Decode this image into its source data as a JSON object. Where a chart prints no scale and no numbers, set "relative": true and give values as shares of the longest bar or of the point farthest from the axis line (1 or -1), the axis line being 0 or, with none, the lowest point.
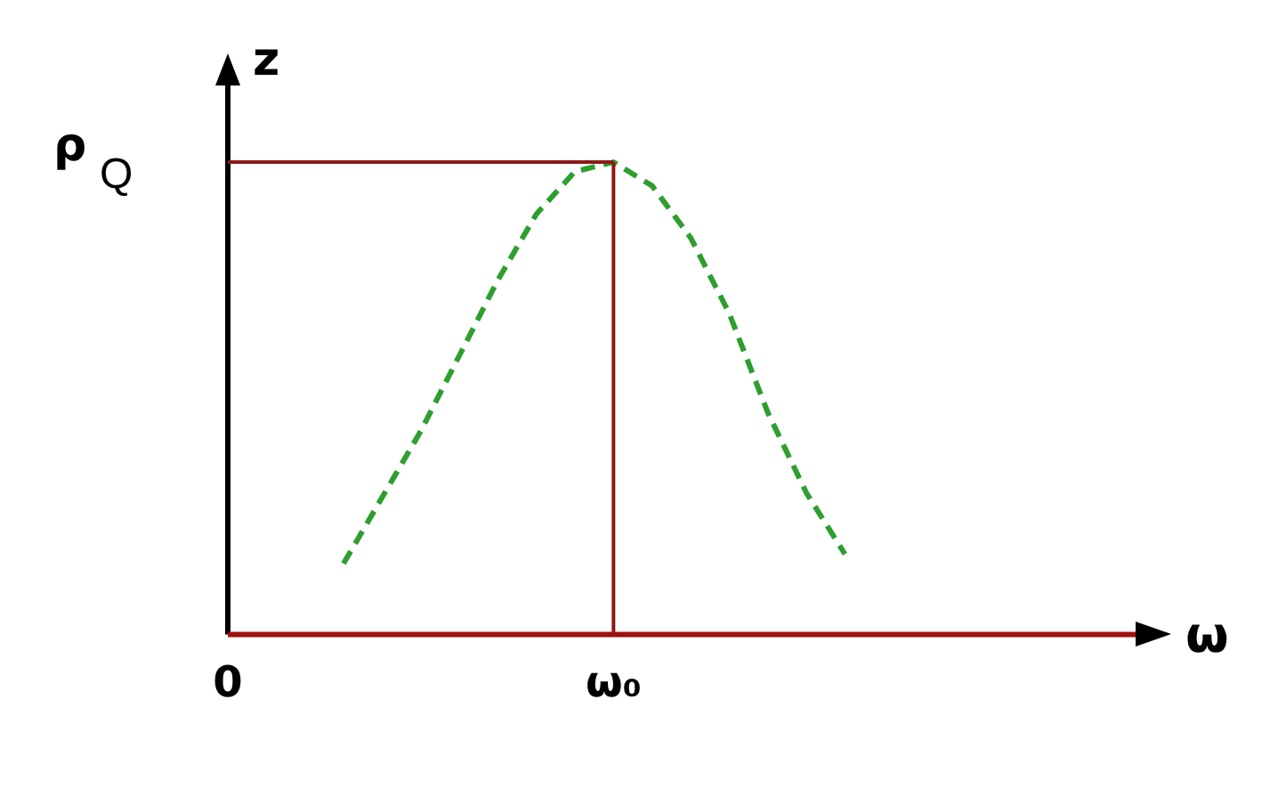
{
  "chart_data": {
    "type": "line",
    "relative": true,
    "xlabel": "ω",
    "ylabel": "z",
    "legend": false,
    "marker": "none",
    "line_style": "dashed",
    "categories": [
      "0",
      null,
      null,
      null,
      null,
      null,
      null,
      null,
      null,
      null,
      "ω₀",
      null,
      null,
      null,
      null,
      null,
      null,
      null,
      null,
      null,
      null,
      null,
      null,
      null,
      null
    ],
    "series": [
      {
        "color": "#2e9e2e",
        "values": [
          null,
          null,
          null,
          0.15,
          0.29,
          0.43,
          0.59,
          0.75,
          0.89,
          0.98,
          1.0,
          0.95,
          0.84,
          0.68,
          0.47,
          0.3,
          0.17,
          null,
          null,
          null,
          null,
          null,
          null,
          null,
          null
        ]
      }
    ],
    "ref_lines": [
      {
        "axis": "y",
        "value": 1,
        "label": "ρQ",
        "color": "#8b1a1a"
      },
      {
        "axis": "x",
        "value": "ω₀",
        "color": "#8b1a1a"
      }
    ]
  }
}
